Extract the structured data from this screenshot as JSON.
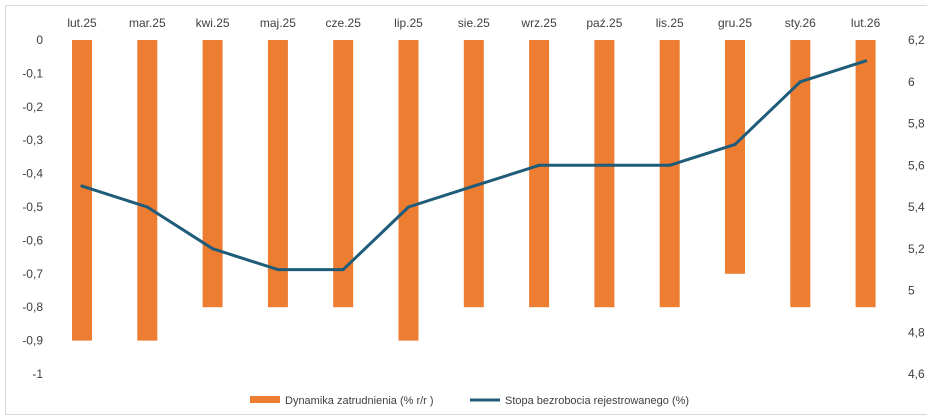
{
  "chart_data": {
    "type": "bar",
    "categories": [
      "lut.25",
      "mar.25",
      "kwi.25",
      "maj.25",
      "cze.25",
      "lip.25",
      "sie.25",
      "wrz.25",
      "paź.25",
      "lis.25",
      "gru.25",
      "sty.26",
      "lut.26"
    ],
    "series": [
      {
        "name": "Dynamika zatrudnienia (% r/r )",
        "type": "bar",
        "axis": "left",
        "color": "#ED7D31",
        "values": [
          -0.9,
          -0.9,
          -0.8,
          -0.8,
          -0.8,
          -0.9,
          -0.8,
          -0.8,
          -0.8,
          -0.8,
          -0.7,
          -0.8,
          -0.8
        ]
      },
      {
        "name": "Stopa bezrobocia rejestrowanego (%)",
        "type": "line",
        "axis": "right",
        "color": "#1F5C7A",
        "values": [
          5.5,
          5.4,
          5.2,
          5.1,
          5.1,
          5.4,
          5.5,
          5.6,
          5.6,
          5.6,
          5.7,
          6.0,
          6.1
        ]
      }
    ],
    "y_left": {
      "range": [
        -1,
        0
      ],
      "ticks": [
        "0",
        "-0,1",
        "-0,2",
        "-0,3",
        "-0,4",
        "-0,5",
        "-0,6",
        "-0,7",
        "-0,8",
        "-0,9",
        "-1"
      ]
    },
    "y_right": {
      "range": [
        4.6,
        6.2
      ],
      "ticks": [
        "6,2",
        "6",
        "5,8",
        "5,6",
        "5,4",
        "5,2",
        "5",
        "4,8",
        "4,6"
      ]
    },
    "category_axis_position": "top",
    "grid": false,
    "legend_position": "bottom"
  }
}
